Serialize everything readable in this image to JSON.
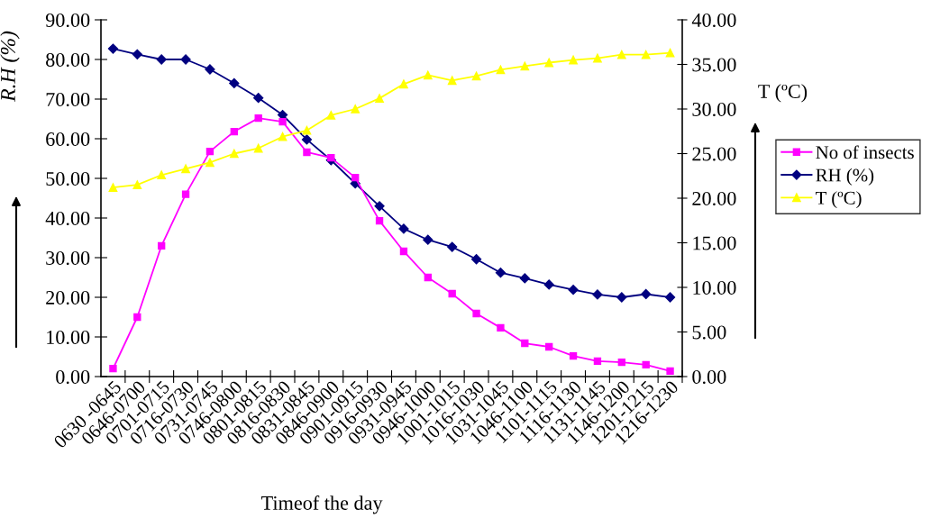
{
  "chart_data": {
    "type": "line",
    "xlabel": "Timeof the day",
    "ylabel": "R.H (%)",
    "y2label": "T (ºC)",
    "categories": [
      "0630 -0645",
      "0646-0700",
      "0701-0715",
      "0716-0730",
      "0731-0745",
      "0746-0800",
      "0801-0815",
      "0816-0830",
      "0831-0845",
      "0846-0900",
      "0901-0915",
      "0916-0930",
      "0931-0945",
      "0946-1000",
      "1001-1015",
      "1016-1030",
      "1031-1045",
      "1046-1100",
      "1101-1115",
      "1116-1130",
      "1131-1145",
      "1146-1200",
      "1201-1215",
      "1216-1230"
    ],
    "series": [
      {
        "name": "No of insects",
        "color": "#ff00ff",
        "marker": "square",
        "values": [
          2.0,
          15.0,
          33.0,
          46.0,
          56.8,
          61.8,
          65.2,
          64.3,
          56.6,
          55.2,
          50.2,
          39.3,
          31.6,
          25.0,
          20.9,
          15.9,
          12.3,
          8.4,
          7.5,
          5.2,
          3.9,
          3.6,
          3.0,
          1.4
        ]
      },
      {
        "name": "RH (%)",
        "color": "#000080",
        "marker": "diamond",
        "values": [
          82.7,
          81.3,
          80.0,
          80.0,
          77.5,
          74.0,
          70.3,
          66.0,
          59.8,
          54.6,
          48.7,
          43.0,
          37.3,
          34.5,
          32.7,
          29.6,
          26.2,
          24.8,
          23.2,
          21.9,
          20.7,
          20.0,
          20.8,
          20.0
        ]
      },
      {
        "name": "T (ºC)",
        "color": "#ffff00",
        "marker": "triangle",
        "axis": "y2",
        "values": [
          21.2,
          21.5,
          22.6,
          23.3,
          24.0,
          25.0,
          25.6,
          26.9,
          27.6,
          29.3,
          30.0,
          31.2,
          32.8,
          33.8,
          33.2,
          33.7,
          34.4,
          34.8,
          35.2,
          35.5,
          35.7,
          36.1,
          36.1,
          36.3
        ]
      }
    ],
    "ylim": [
      0,
      90
    ],
    "yticks": [
      {
        "value": 0,
        "label": "0.00"
      },
      {
        "value": 10,
        "label": "10.00"
      },
      {
        "value": 20,
        "label": "20.00"
      },
      {
        "value": 30,
        "label": "30.00"
      },
      {
        "value": 40,
        "label": "40.00"
      },
      {
        "value": 50,
        "label": "50.00"
      },
      {
        "value": 60,
        "label": "60.00"
      },
      {
        "value": 70,
        "label": "70.00"
      },
      {
        "value": 80,
        "label": "80.00"
      },
      {
        "value": 90,
        "label": "90.00"
      }
    ],
    "y2lim": [
      0,
      40
    ],
    "y2ticks": [
      {
        "value": 0,
        "label": "0.00"
      },
      {
        "value": 5,
        "label": "5.00"
      },
      {
        "value": 10,
        "label": "10.00"
      },
      {
        "value": 15,
        "label": "15.00"
      },
      {
        "value": 20,
        "label": "20.00"
      },
      {
        "value": 25,
        "label": "25.00"
      },
      {
        "value": 30,
        "label": "30.00"
      },
      {
        "value": 35,
        "label": "35.00"
      },
      {
        "value": 40,
        "label": "40.00"
      }
    ],
    "legend": "right",
    "grid": false,
    "line_style": "solid"
  }
}
